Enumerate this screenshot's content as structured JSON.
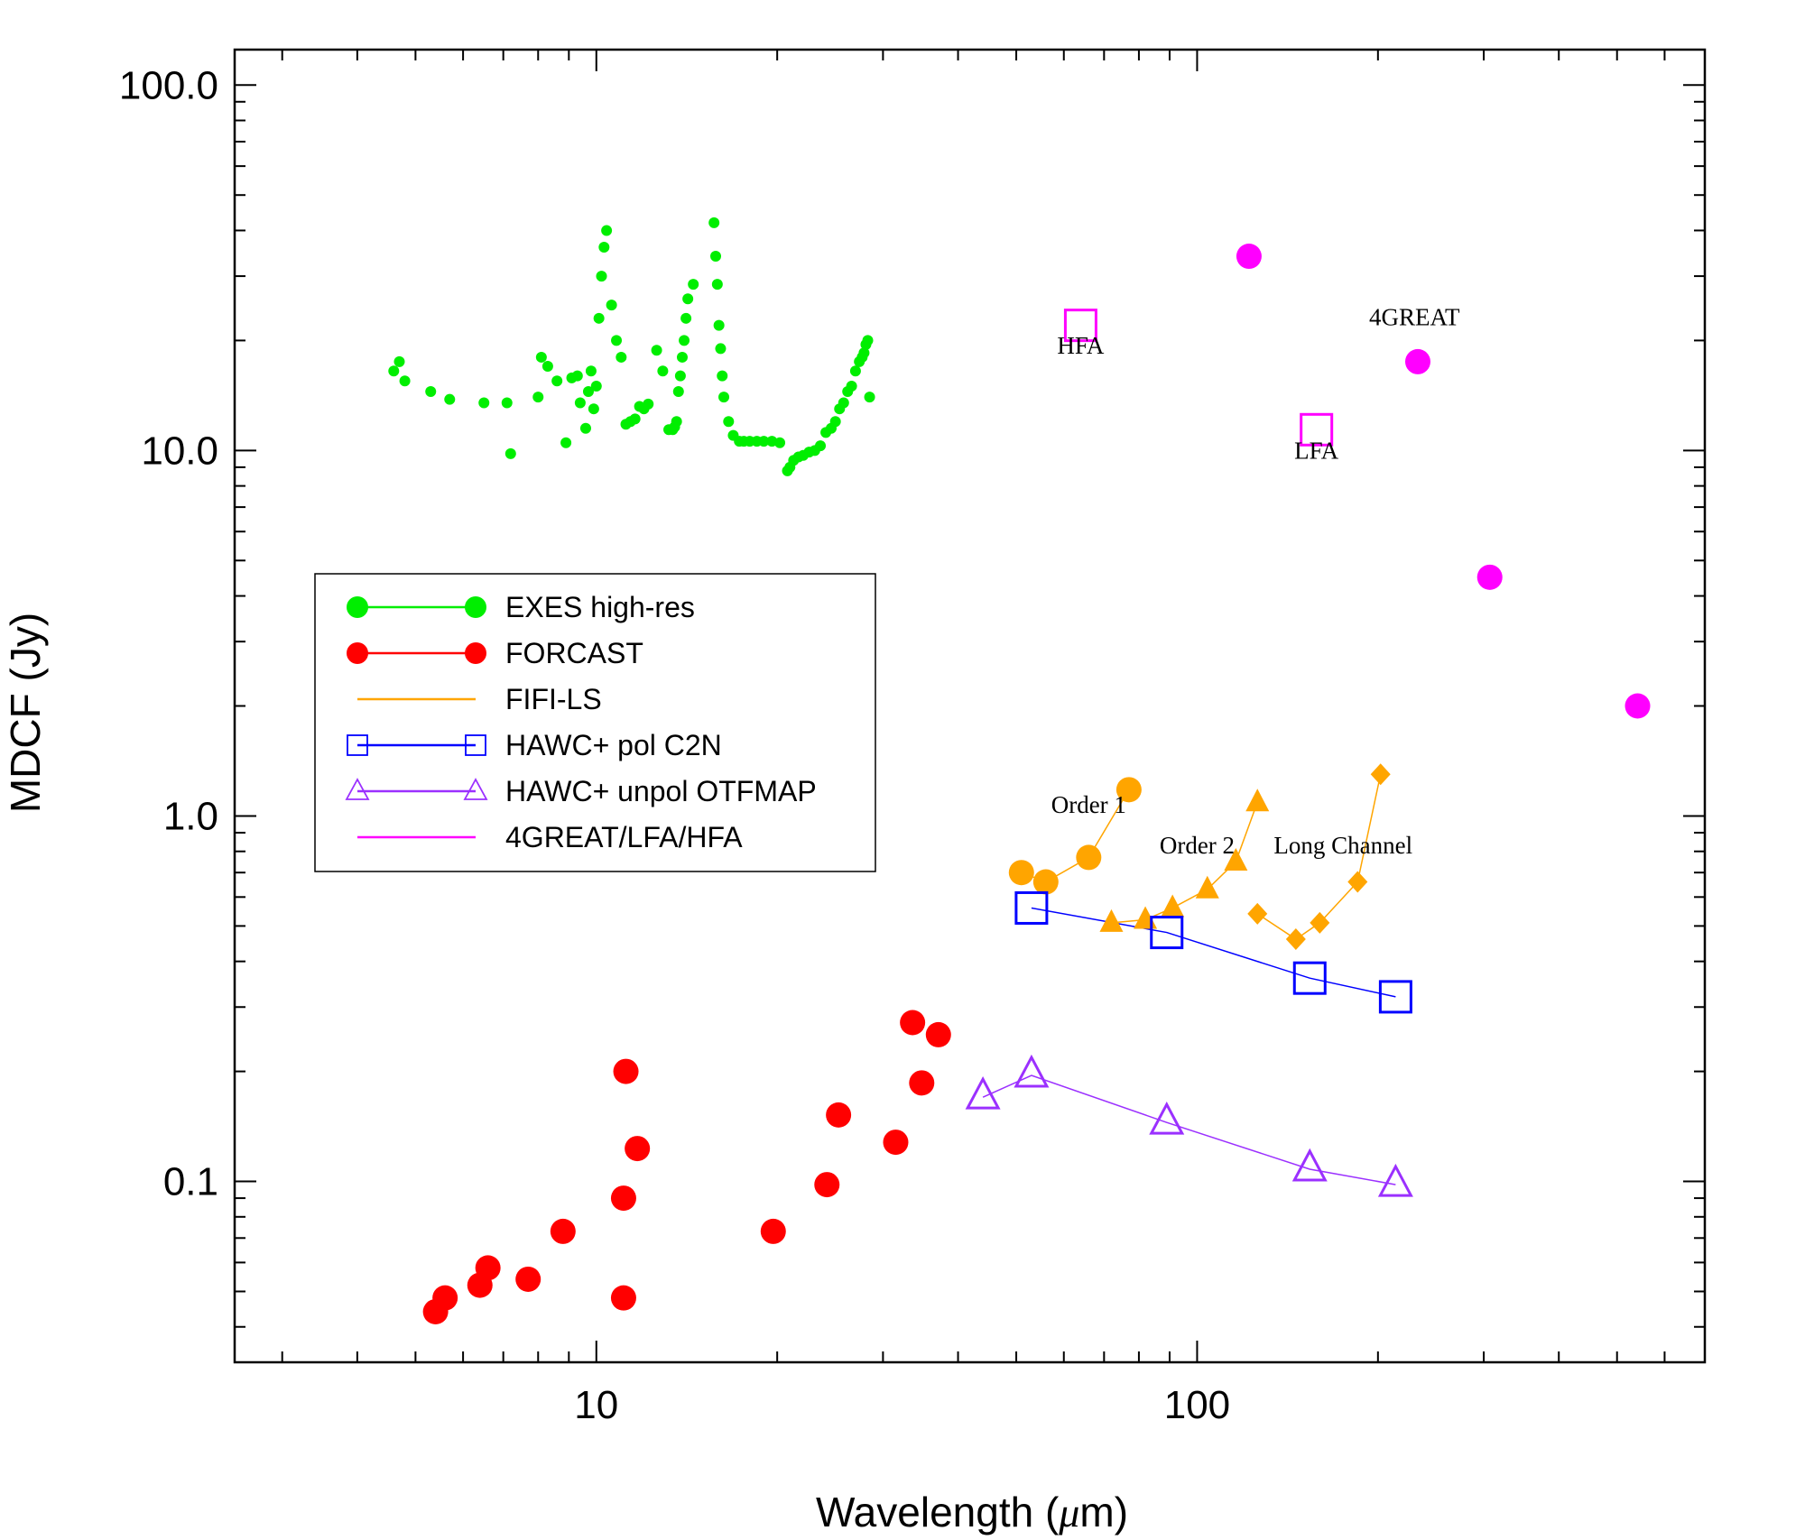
{
  "chart_data": {
    "type": "scatter",
    "title": "",
    "xlabel_prefix": "Wavelength (",
    "xlabel_unit": "μ",
    "xlabel_suffix": "m)",
    "ylabel": "MDCF (Jy)",
    "xscale": "log",
    "yscale": "log",
    "xlim": [
      2.5,
      700
    ],
    "ylim": [
      0.032,
      125
    ],
    "xticks": [
      {
        "value": 10,
        "label": "10"
      },
      {
        "value": 100,
        "label": "100"
      }
    ],
    "yticks": [
      {
        "value": 0.1,
        "label": "0.1"
      },
      {
        "value": 1,
        "label": "1.0"
      },
      {
        "value": 10,
        "label": "10.0"
      },
      {
        "value": 100,
        "label": "100.0"
      }
    ],
    "legend_position": "center-left",
    "series": [
      {
        "name": "EXES high-res",
        "color": "#00ee00",
        "marker": "dot",
        "x": [
          4.6,
          4.7,
          4.8,
          5.3,
          5.7,
          6.5,
          7.1,
          7.2,
          8.0,
          8.1,
          8.3,
          8.6,
          8.9,
          9.1,
          9.3,
          9.4,
          9.6,
          9.7,
          9.8,
          9.9,
          10.0,
          10.1,
          10.2,
          10.3,
          10.4,
          10.6,
          10.8,
          11.0,
          11.2,
          11.4,
          11.6,
          11.8,
          12.0,
          12.2,
          12.6,
          12.9,
          13.2,
          13.4,
          13.5,
          13.6,
          13.7,
          13.8,
          13.9,
          14.0,
          14.1,
          14.2,
          14.5,
          15.7,
          15.8,
          15.9,
          16.0,
          16.1,
          16.2,
          16.3,
          16.6,
          16.9,
          17.3,
          17.6,
          18.0,
          18.5,
          19.0,
          19.6,
          20.2,
          20.8,
          21.0,
          21.3,
          21.7,
          22.1,
          22.6,
          23.1,
          23.6,
          24.1,
          24.6,
          25.0,
          25.4,
          25.8,
          26.2,
          26.6,
          27.0,
          27.4,
          27.7,
          27.9,
          28.1,
          28.3,
          28.5
        ],
        "y": [
          16.5,
          17.5,
          15.5,
          14.5,
          13.8,
          13.5,
          13.5,
          9.8,
          14.0,
          18.0,
          17.0,
          15.5,
          10.5,
          15.8,
          16.0,
          13.5,
          11.5,
          14.5,
          16.5,
          13.0,
          15.0,
          23.0,
          30.0,
          36.0,
          40.0,
          25.0,
          20.0,
          18.0,
          11.8,
          12.0,
          12.2,
          13.2,
          13.0,
          13.4,
          18.8,
          16.5,
          11.4,
          11.4,
          11.6,
          12.0,
          14.5,
          16.0,
          18.0,
          20.0,
          23.0,
          26.0,
          28.5,
          42.0,
          34.0,
          28.5,
          22.0,
          19.0,
          16.0,
          14.0,
          12.0,
          11.0,
          10.6,
          10.6,
          10.6,
          10.6,
          10.6,
          10.6,
          10.5,
          8.8,
          9.0,
          9.4,
          9.6,
          9.7,
          9.9,
          10.0,
          10.3,
          11.2,
          11.5,
          12.0,
          13.0,
          13.5,
          14.5,
          15.0,
          16.5,
          17.5,
          18.0,
          18.5,
          19.5,
          20.0,
          14.0
        ]
      },
      {
        "name": "FORCAST",
        "color": "#ff0000",
        "marker": "circle",
        "x": [
          5.4,
          5.6,
          6.4,
          6.6,
          7.7,
          8.8,
          11.1,
          11.1,
          11.2,
          11.7,
          19.7,
          24.2,
          25.3,
          31.5,
          33.6,
          34.8,
          37.1
        ],
        "y": [
          0.044,
          0.048,
          0.052,
          0.058,
          0.054,
          0.073,
          0.048,
          0.09,
          0.2,
          0.123,
          0.073,
          0.098,
          0.152,
          0.128,
          0.272,
          0.186,
          0.252
        ]
      },
      {
        "name": "FIFI-LS",
        "color": "#ffa500",
        "groups": [
          {
            "label": "Order 1",
            "marker": "circle",
            "connected": true,
            "x": [
              51,
              56,
              66,
              77
            ],
            "y": [
              0.7,
              0.66,
              0.77,
              1.18
            ]
          },
          {
            "label": "Order 2",
            "marker": "triangle",
            "connected": true,
            "x": [
              72,
              82,
              91,
              104,
              116,
              126
            ],
            "y": [
              0.51,
              0.52,
              0.56,
              0.63,
              0.75,
              1.09
            ]
          },
          {
            "label": "Long Channel",
            "marker": "diamond",
            "connected": true,
            "x": [
              126,
              146,
              160,
              185,
              202
            ],
            "y": [
              0.54,
              0.46,
              0.51,
              0.66,
              1.3
            ]
          }
        ]
      },
      {
        "name": "HAWC+ pol C2N",
        "color": "#0000ff",
        "marker": "square-open",
        "connected": true,
        "x": [
          53,
          89,
          154,
          214
        ],
        "y": [
          0.56,
          0.48,
          0.36,
          0.32
        ]
      },
      {
        "name": "HAWC+ unpol OTFMAP",
        "color": "#9b30ff",
        "marker": "triangle-open",
        "connected": true,
        "x": [
          44,
          53,
          89,
          154,
          214
        ],
        "y": [
          0.17,
          0.195,
          0.145,
          0.108,
          0.098
        ]
      },
      {
        "name": "4GREAT/LFA/HFA",
        "color": "#ff00ff",
        "groups": [
          {
            "label": "4GREAT",
            "marker": "circle",
            "connected": false,
            "x": [
              122,
              233,
              307,
              541
            ],
            "y": [
              34,
              17.5,
              4.5,
              2.0
            ]
          },
          {
            "label": "HFA",
            "marker": "square-open",
            "connected": false,
            "x": [
              64
            ],
            "y": [
              22
            ]
          },
          {
            "label": "LFA",
            "marker": "square-open",
            "connected": false,
            "x": [
              158
            ],
            "y": [
              11.4
            ]
          }
        ]
      }
    ],
    "annotations": [
      {
        "text": "Order 1",
        "x": 66,
        "y": 1.02
      },
      {
        "text": "Order 2",
        "x": 100,
        "y": 0.79
      },
      {
        "text": "Long Channel",
        "x": 175,
        "y": 0.79
      },
      {
        "text": "4GREAT",
        "x": 230,
        "y": 22
      },
      {
        "text": "HFA",
        "x": 64,
        "y": 18.4
      },
      {
        "text": "LFA",
        "x": 158,
        "y": 9.5
      }
    ]
  }
}
